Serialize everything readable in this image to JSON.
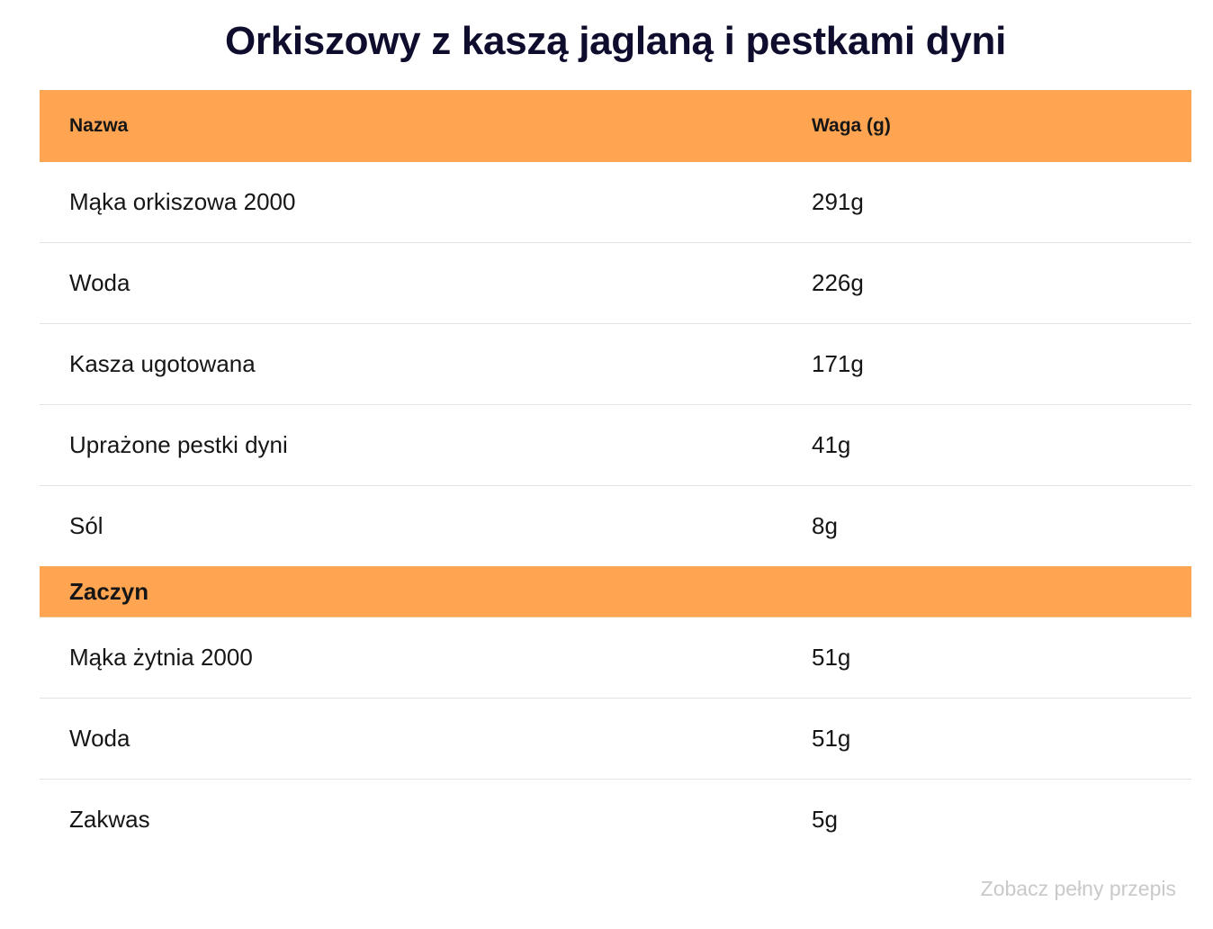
{
  "title": "Orkiszowy z kaszą jaglaną i pestkami dyni",
  "table": {
    "headers": {
      "name": "Nazwa",
      "weight": "Waga (g)"
    },
    "rows": [
      {
        "name": "Mąka orkiszowa 2000",
        "weight": "291g"
      },
      {
        "name": "Woda",
        "weight": "226g"
      },
      {
        "name": "Kasza ugotowana",
        "weight": "171g"
      },
      {
        "name": "Uprażone pestki dyni",
        "weight": "41g"
      },
      {
        "name": "Sól",
        "weight": "8g"
      }
    ],
    "section": {
      "title": "Zaczyn",
      "rows": [
        {
          "name": "Mąka żytnia 2000",
          "weight": "51g"
        },
        {
          "name": "Woda",
          "weight": "51g"
        },
        {
          "name": "Zakwas",
          "weight": "5g"
        }
      ]
    }
  },
  "footer": {
    "link_label": "Zobacz pełny przepis"
  },
  "colors": {
    "header_bg": "#ffa552",
    "title": "#0f0d2e",
    "link": "#c9c9c9"
  }
}
